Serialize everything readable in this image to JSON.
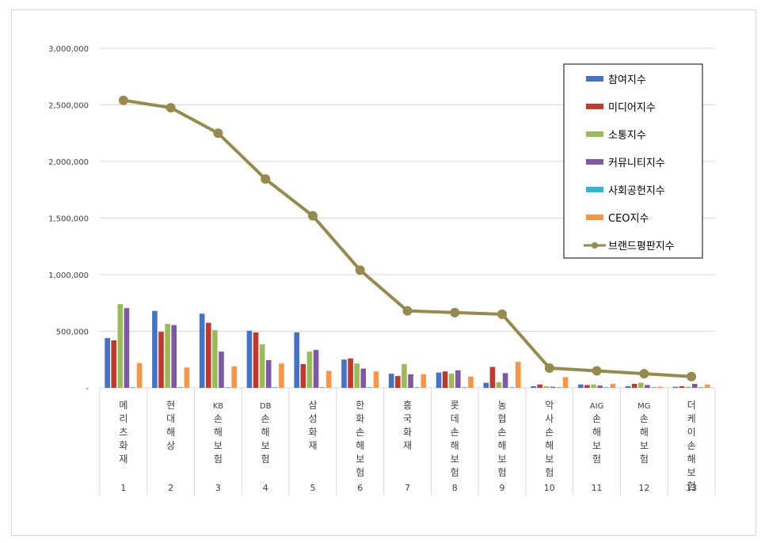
{
  "chart_data": {
    "type": "bar",
    "categories": [
      "메리츠화재",
      "현대해상",
      "KB손해보험",
      "DB손해보험",
      "삼성화재",
      "한화손해보험",
      "흥국화재",
      "롯데손해보험",
      "농협손해보험",
      "악사손해보험",
      "AIG손해보험",
      "MG손해보험",
      "더케이손해보험"
    ],
    "ranks": [
      "1",
      "2",
      "3",
      "4",
      "5",
      "6",
      "7",
      "8",
      "9",
      "10",
      "11",
      "12",
      "13"
    ],
    "ylim": [
      0,
      3000000
    ],
    "yticks": [
      "-",
      "500,000",
      "1,000,000",
      "1,500,000",
      "2,000,000",
      "2,500,000",
      "3,000,000"
    ],
    "grid": true,
    "legend_position": "top-right",
    "series": [
      {
        "name": "참여지수",
        "color": "#4472c4",
        "kind": "bar",
        "values": [
          440000,
          680000,
          655000,
          505000,
          490000,
          250000,
          125000,
          135000,
          45000,
          15000,
          30000,
          15000,
          10000
        ]
      },
      {
        "name": "미디어지수",
        "color": "#c0392b",
        "kind": "bar",
        "values": [
          420000,
          495000,
          575000,
          490000,
          210000,
          260000,
          105000,
          145000,
          185000,
          30000,
          25000,
          35000,
          15000
        ]
      },
      {
        "name": "소통지수",
        "color": "#9bbb59",
        "kind": "bar",
        "values": [
          740000,
          565000,
          510000,
          385000,
          320000,
          215000,
          210000,
          125000,
          50000,
          15000,
          30000,
          45000,
          10000
        ]
      },
      {
        "name": "커뮤니티지수",
        "color": "#7e57a7",
        "kind": "bar",
        "values": [
          705000,
          555000,
          320000,
          245000,
          335000,
          170000,
          120000,
          155000,
          130000,
          10000,
          20000,
          25000,
          35000
        ]
      },
      {
        "name": "사회공헌지수",
        "color": "#31b6d0",
        "kind": "bar",
        "values": [
          5000,
          5000,
          5000,
          5000,
          5000,
          5000,
          5000,
          5000,
          5000,
          5000,
          5000,
          5000,
          5000
        ]
      },
      {
        "name": "CEO지수",
        "color": "#f79646",
        "kind": "bar",
        "values": [
          220000,
          180000,
          190000,
          215000,
          150000,
          145000,
          120000,
          100000,
          230000,
          95000,
          35000,
          10000,
          30000
        ]
      },
      {
        "name": "브랜드평판지수",
        "color": "#968a4c",
        "kind": "line",
        "values": [
          2540000,
          2475000,
          2250000,
          1845000,
          1520000,
          1040000,
          680000,
          665000,
          650000,
          175000,
          150000,
          125000,
          100000
        ]
      }
    ]
  }
}
